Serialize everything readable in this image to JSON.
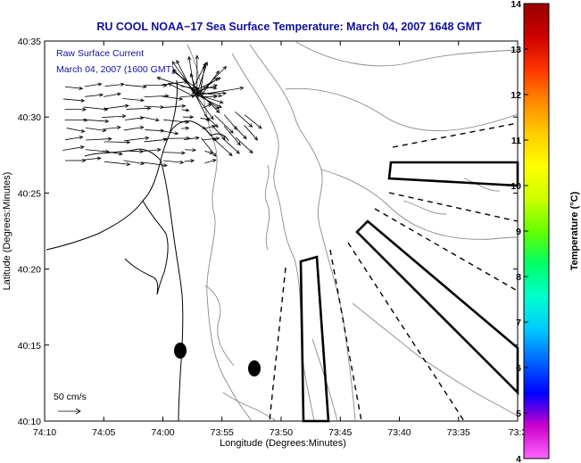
{
  "title": "RU COOL  NOAA−17  Sea Surface Temperature:  March 04, 2007 1648 GMT",
  "legend": {
    "line1": "Raw Surface Current",
    "line2": "March 04, 2007 (1600 GMT)"
  },
  "scale_label": "50 cm/s",
  "colorbar": {
    "label": "Temperature (°C)",
    "min": 4,
    "max": 14,
    "ticks": [
      "4",
      "5",
      "6",
      "7",
      "8",
      "9",
      "10",
      "11",
      "12",
      "13",
      "14"
    ],
    "colors": [
      "#ff66ff",
      "#cc00cc",
      "#0000ff",
      "#0066ff",
      "#00ccff",
      "#00ffcc",
      "#00ff66",
      "#66ff00",
      "#ccff00",
      "#ffff00",
      "#ffcc00",
      "#ff8800",
      "#ff3300",
      "#cc0000",
      "#990000"
    ]
  },
  "chart_data": {
    "type": "map",
    "title": "RU COOL  NOAA−17  Sea Surface Temperature:  March 04, 2007 1648 GMT",
    "xlabel": "Longitude (Degrees:Minutes)",
    "ylabel": "Latitude (Degrees:Minutes)",
    "x_ticks": [
      "74:10",
      "74:05",
      "74:00",
      "73:55",
      "73:50",
      "73:45",
      "73:40",
      "73:35",
      "73:3"
    ],
    "y_ticks": [
      "40:35",
      "40:30",
      "40:25",
      "40:20",
      "40:15",
      "40:10"
    ],
    "xlim_minutes_west": [
      10,
      30
    ],
    "ylim_minutes_north": [
      10,
      35
    ],
    "markers": [
      {
        "name": "dot-1",
        "lon_min_w": 9.0,
        "lat_min_n": 14.7
      },
      {
        "name": "dot-2",
        "lon_min_w": 2.3,
        "lat_min_n": 13.5
      }
    ]
  }
}
